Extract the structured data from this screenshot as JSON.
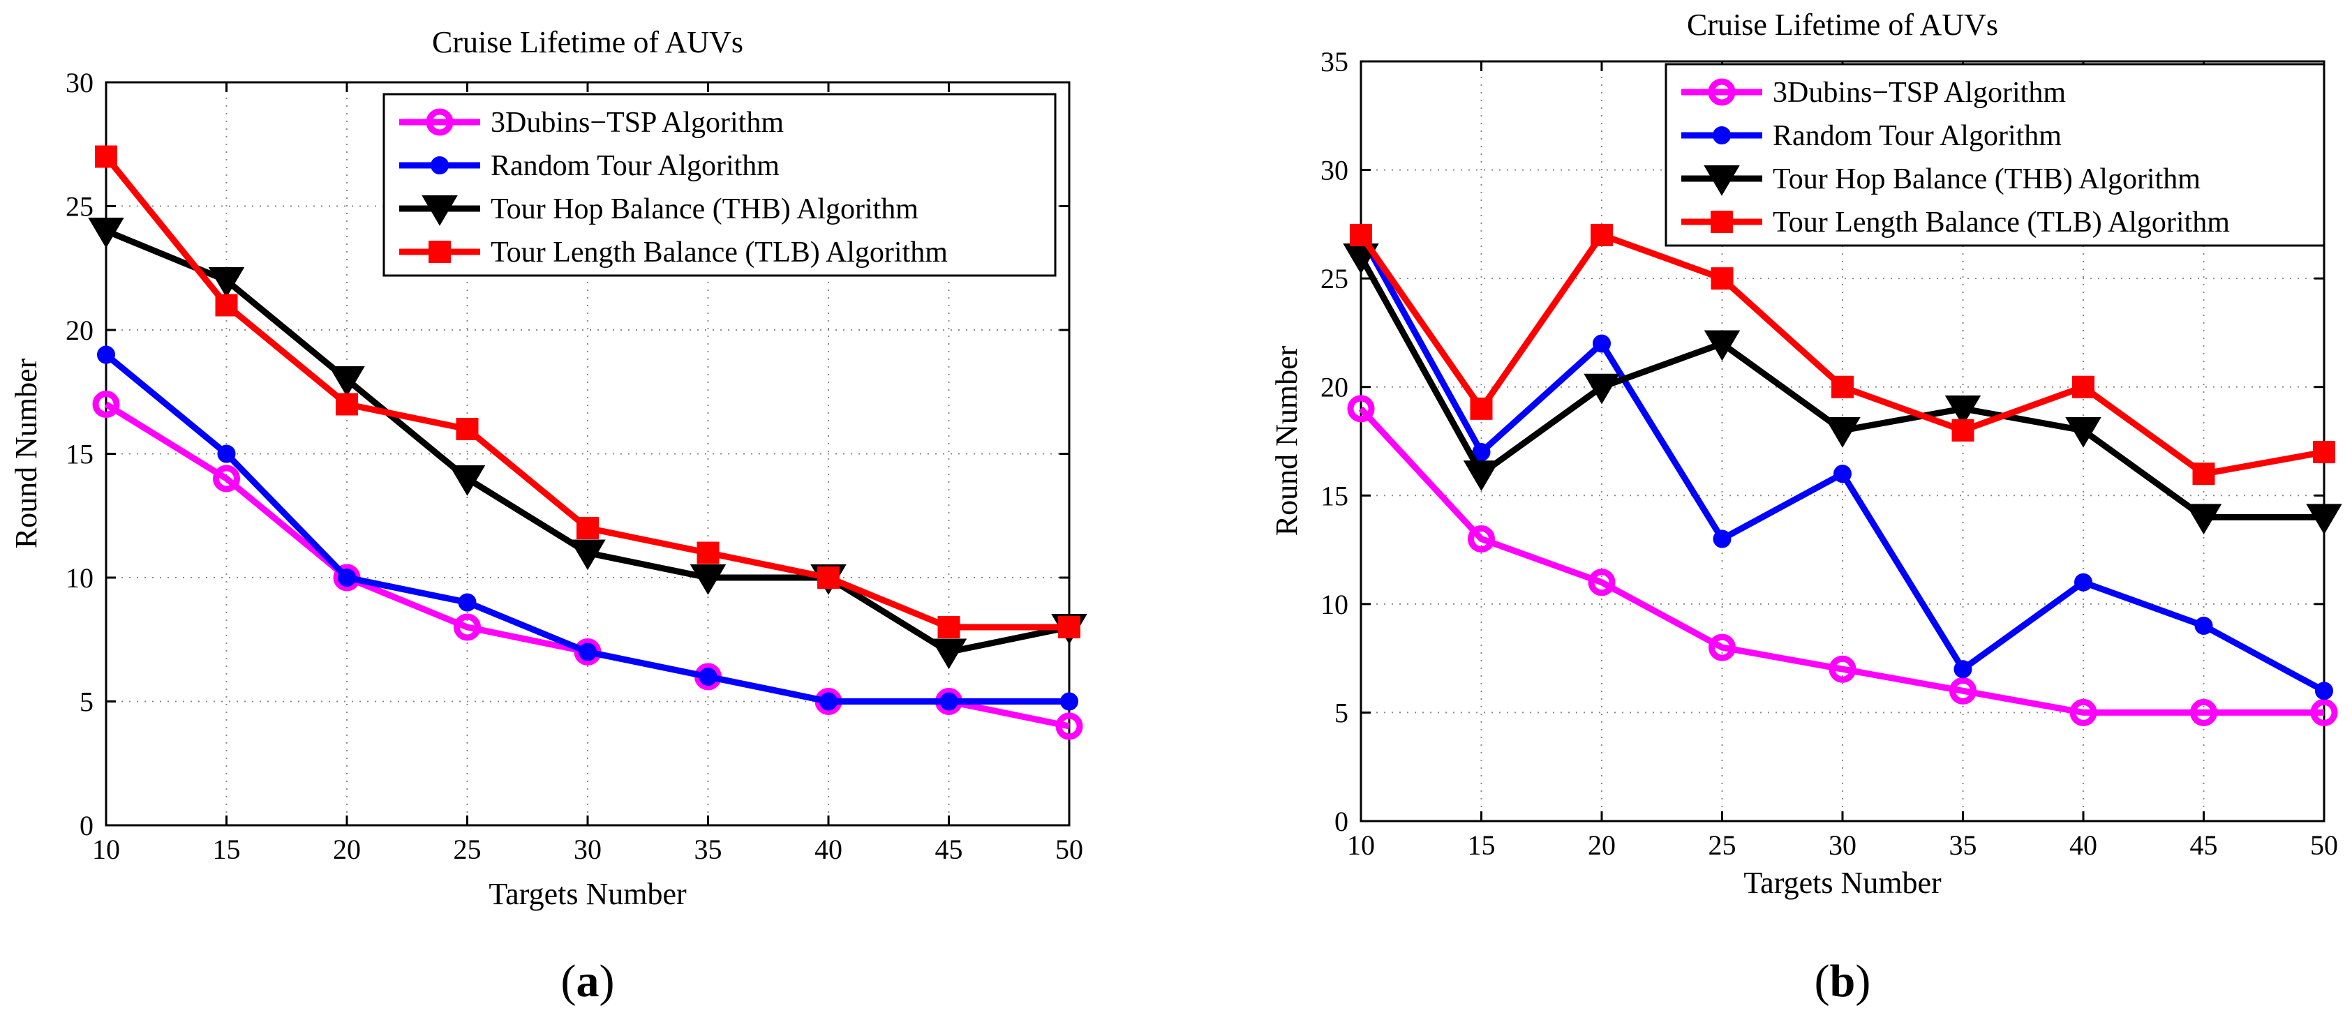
{
  "chart_data": [
    {
      "type": "line",
      "panel_label": "a",
      "title": "Cruise Lifetime of AUVs",
      "xlabel": "Targets Number",
      "ylabel": "Round Number",
      "x": [
        10,
        15,
        20,
        25,
        30,
        35,
        40,
        45,
        50
      ],
      "xlim": [
        10,
        50
      ],
      "ylim": [
        0,
        30
      ],
      "xticks": [
        10,
        15,
        20,
        25,
        30,
        35,
        40,
        45,
        50
      ],
      "yticks": [
        0,
        5,
        10,
        15,
        20,
        25,
        30
      ],
      "grid": true,
      "legend_position": "top-right",
      "series": [
        {
          "name": "3Dubins−TSP Algorithm",
          "color": "#ff00ff",
          "marker": "circle",
          "values": [
            17,
            14,
            10,
            8,
            7,
            6,
            5,
            5,
            4
          ]
        },
        {
          "name": "Random Tour Algorithm",
          "color": "#0000ff",
          "marker": "dot",
          "values": [
            19,
            15,
            10,
            9,
            7,
            6,
            5,
            5,
            5
          ]
        },
        {
          "name": "Tour Hop Balance (THB) Algorithm",
          "color": "#000000",
          "marker": "triangle-down",
          "values": [
            24,
            22,
            18,
            14,
            11,
            10,
            10,
            7,
            8
          ]
        },
        {
          "name": "Tour Length Balance (TLB) Algorithm",
          "color": "#ff0000",
          "marker": "square",
          "values": [
            27,
            21,
            17,
            16,
            12,
            11,
            10,
            8,
            8
          ]
        }
      ]
    },
    {
      "type": "line",
      "panel_label": "b",
      "title": "Cruise Lifetime of AUVs",
      "xlabel": "Targets Number",
      "ylabel": "Round Number",
      "x": [
        10,
        15,
        20,
        25,
        30,
        35,
        40,
        45,
        50
      ],
      "xlim": [
        10,
        50
      ],
      "ylim": [
        0,
        35
      ],
      "xticks": [
        10,
        15,
        20,
        25,
        30,
        35,
        40,
        45,
        50
      ],
      "yticks": [
        0,
        5,
        10,
        15,
        20,
        25,
        30,
        35
      ],
      "grid": true,
      "legend_position": "top-right",
      "series": [
        {
          "name": "3Dubins−TSP Algorithm",
          "color": "#ff00ff",
          "marker": "circle",
          "values": [
            19,
            13,
            11,
            8,
            7,
            6,
            5,
            5,
            5
          ]
        },
        {
          "name": "Random Tour Algorithm",
          "color": "#0000ff",
          "marker": "dot",
          "values": [
            27,
            17,
            22,
            13,
            16,
            7,
            11,
            9,
            6
          ]
        },
        {
          "name": "Tour Hop Balance (THB) Algorithm",
          "color": "#000000",
          "marker": "triangle-down",
          "values": [
            26,
            16,
            20,
            22,
            18,
            19,
            18,
            14,
            14
          ]
        },
        {
          "name": "Tour Length Balance (TLB) Algorithm",
          "color": "#ff0000",
          "marker": "square",
          "values": [
            27,
            19,
            27,
            25,
            20,
            18,
            20,
            16,
            17
          ]
        }
      ]
    }
  ]
}
